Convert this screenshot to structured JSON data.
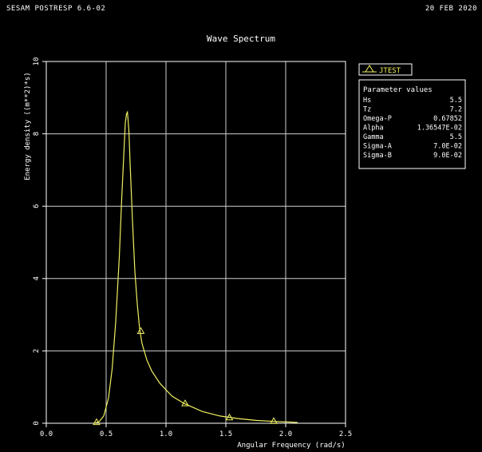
{
  "header": {
    "program": "SESAM POSTRESP 6.6-02",
    "date": "20 FEB 2020"
  },
  "chart_data": {
    "type": "line",
    "title": "Wave Spectrum",
    "xlabel": "Angular Frequency (rad/s)",
    "ylabel": "Energy density ((m**2)*s)",
    "xlim": [
      0.0,
      2.5
    ],
    "ylim": [
      0,
      10
    ],
    "xticks": [
      "0.0",
      "0.5",
      "1.0",
      "1.5",
      "2.0",
      "2.5"
    ],
    "yticks": [
      "0",
      "2",
      "4",
      "6",
      "8",
      "10"
    ],
    "grid": true,
    "line_color": "#f0f060",
    "series": [
      {
        "name": "JTEST",
        "x": [
          0.4,
          0.44,
          0.48,
          0.52,
          0.55,
          0.58,
          0.61,
          0.63,
          0.65,
          0.66,
          0.67,
          0.678,
          0.69,
          0.7,
          0.72,
          0.74,
          0.76,
          0.78,
          0.8,
          0.84,
          0.88,
          0.95,
          1.05,
          1.15,
          1.3,
          1.45,
          1.6,
          1.75,
          1.9,
          2.05,
          2.1
        ],
        "y": [
          0.0,
          0.04,
          0.2,
          0.7,
          1.5,
          2.8,
          4.6,
          6.2,
          7.6,
          8.3,
          8.55,
          8.6,
          8.1,
          7.2,
          5.6,
          4.2,
          3.3,
          2.6,
          2.2,
          1.75,
          1.45,
          1.1,
          0.75,
          0.55,
          0.33,
          0.2,
          0.13,
          0.08,
          0.05,
          0.03,
          0.02
        ],
        "markers": [
          {
            "x": 0.42,
            "y": 0.03
          },
          {
            "x": 0.79,
            "y": 2.55
          },
          {
            "x": 1.16,
            "y": 0.55
          },
          {
            "x": 1.53,
            "y": 0.16
          },
          {
            "x": 1.9,
            "y": 0.06
          }
        ]
      }
    ],
    "legend": {
      "position": "top-right",
      "label": "JTEST"
    },
    "parameters": {
      "title": "Parameter values",
      "rows": [
        {
          "name": "Hs",
          "value": "5.5"
        },
        {
          "name": "Tz",
          "value": "7.2"
        },
        {
          "name": "Omega-P",
          "value": "0.67852"
        },
        {
          "name": "Alpha",
          "value": "1.36547E-02"
        },
        {
          "name": "Gamma",
          "value": "5.5"
        },
        {
          "name": "Sigma-A",
          "value": "7.0E-02"
        },
        {
          "name": "Sigma-B",
          "value": "9.0E-02"
        }
      ]
    }
  }
}
